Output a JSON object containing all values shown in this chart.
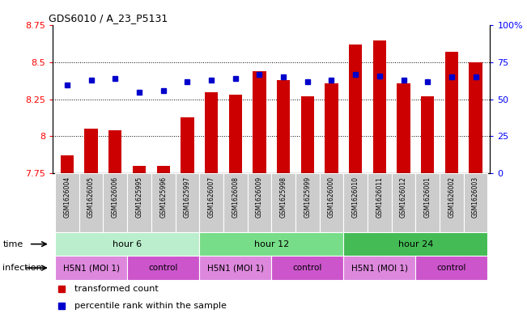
{
  "title": "GDS6010 / A_23_P5131",
  "samples": [
    "GSM1626004",
    "GSM1626005",
    "GSM1626006",
    "GSM1625995",
    "GSM1625996",
    "GSM1625997",
    "GSM1626007",
    "GSM1626008",
    "GSM1626009",
    "GSM1625998",
    "GSM1625999",
    "GSM1626000",
    "GSM1626010",
    "GSM1626011",
    "GSM1626012",
    "GSM1626001",
    "GSM1626002",
    "GSM1626003"
  ],
  "red_values": [
    7.87,
    8.05,
    8.04,
    7.8,
    7.8,
    8.13,
    8.3,
    8.28,
    8.44,
    8.38,
    8.27,
    8.36,
    8.62,
    8.65,
    8.36,
    8.27,
    8.57,
    8.5
  ],
  "blue_values": [
    60,
    63,
    64,
    55,
    56,
    62,
    63,
    64,
    67,
    65,
    62,
    63,
    67,
    66,
    63,
    62,
    65,
    65
  ],
  "y_min": 7.75,
  "y_max": 8.75,
  "y_ticks_left": [
    7.75,
    8.0,
    8.25,
    8.5,
    8.75
  ],
  "y_ticks_left_labels": [
    "7.75",
    "8",
    "8.25",
    "8.5",
    "8.75"
  ],
  "y_ticks_right": [
    0,
    25,
    50,
    75,
    100
  ],
  "y_ticks_right_labels": [
    "0",
    "25",
    "50",
    "75",
    "100%"
  ],
  "bar_color": "#cc0000",
  "dot_color": "#0000cc",
  "sample_bg": "#cccccc",
  "time_colors": [
    "#bbeecc",
    "#77dd88",
    "#44bb55"
  ],
  "time_groups": [
    {
      "label": "hour 6",
      "start": 0,
      "end": 6
    },
    {
      "label": "hour 12",
      "start": 6,
      "end": 12
    },
    {
      "label": "hour 24",
      "start": 12,
      "end": 18
    }
  ],
  "infection_h5n1_color": "#dd88dd",
  "infection_ctrl_color": "#cc55cc",
  "infection_groups": [
    {
      "label": "H5N1 (MOI 1)",
      "start": 0,
      "end": 3
    },
    {
      "label": "control",
      "start": 3,
      "end": 6
    },
    {
      "label": "H5N1 (MOI 1)",
      "start": 6,
      "end": 9
    },
    {
      "label": "control",
      "start": 9,
      "end": 12
    },
    {
      "label": "H5N1 (MOI 1)",
      "start": 12,
      "end": 15
    },
    {
      "label": "control",
      "start": 15,
      "end": 18
    }
  ],
  "legend_items": [
    {
      "label": "transformed count",
      "color": "#cc0000"
    },
    {
      "label": "percentile rank within the sample",
      "color": "#0000cc"
    }
  ]
}
